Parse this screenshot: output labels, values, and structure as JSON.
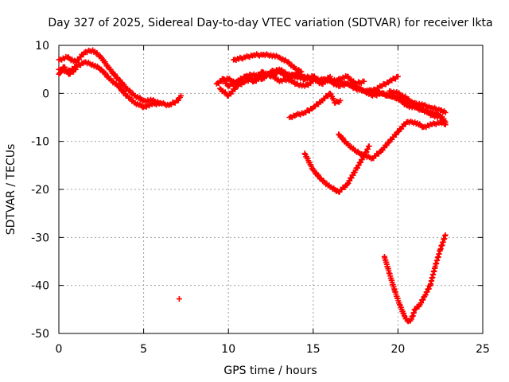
{
  "chart_data": {
    "type": "scatter",
    "title": "Day 327 of 2025, Sidereal Day-to-day VTEC variation (SDTVAR) for receiver lkta",
    "xlabel": "GPS time / hours",
    "ylabel": "SDTVAR / TECUs",
    "xlim": [
      0,
      25
    ],
    "ylim": [
      -50,
      10
    ],
    "x_ticks": [
      0,
      5,
      10,
      15,
      20,
      25
    ],
    "y_ticks": [
      10,
      0,
      -10,
      -20,
      -30,
      -40,
      -50
    ],
    "grid": true,
    "marker": "plus",
    "series_color": "#ff0000",
    "series": [
      {
        "name": "s1",
        "x": [
          0.0,
          0.5,
          1.0,
          1.5,
          2.0,
          2.5,
          3.0,
          3.5,
          4.0,
          4.5,
          5.0,
          5.5,
          6.0,
          6.5,
          7.0,
          7.2
        ],
        "y": [
          5.0,
          4.5,
          5.5,
          6.5,
          6.0,
          5.0,
          3.0,
          1.5,
          -0.5,
          -2.0,
          -2.8,
          -2.3,
          -2.0,
          -2.5,
          -1.5,
          -0.5
        ]
      },
      {
        "name": "s2",
        "x": [
          0.0,
          0.5,
          1.0,
          1.5,
          2.0,
          2.5,
          3.0,
          3.5,
          4.0,
          4.5,
          5.0,
          5.5,
          6.0
        ],
        "y": [
          7.0,
          7.5,
          6.5,
          8.5,
          9.0,
          7.5,
          5.0,
          3.0,
          1.0,
          -0.5,
          -1.5,
          -1.5,
          -2.0
        ]
      },
      {
        "name": "s3",
        "x": [
          0.0,
          0.3,
          0.6,
          1.0
        ],
        "y": [
          4.0,
          5.5,
          4.0,
          5.0
        ]
      },
      {
        "name": "s4",
        "x": [
          7.1
        ],
        "y": [
          -42.8
        ]
      },
      {
        "name": "s5",
        "x": [
          9.3,
          9.7,
          10.0,
          10.5,
          11.0,
          11.5,
          12.0,
          12.5,
          13.0,
          13.5,
          14.0,
          14.5,
          15.0
        ],
        "y": [
          2.0,
          3.0,
          1.5,
          2.5,
          3.5,
          2.5,
          3.5,
          4.0,
          2.5,
          3.0,
          2.0,
          1.5,
          2.5
        ]
      },
      {
        "name": "s6",
        "x": [
          9.5,
          10.0,
          10.5,
          11.0,
          11.5,
          12.0,
          12.5,
          13.0,
          13.5,
          14.0,
          14.5,
          15.0,
          15.5,
          16.0
        ],
        "y": [
          1.0,
          -0.5,
          1.5,
          2.5,
          3.0,
          4.5,
          3.5,
          4.5,
          3.5,
          4.0,
          3.0,
          3.5,
          2.5,
          3.5
        ]
      },
      {
        "name": "s7",
        "x": [
          9.5,
          10.0,
          10.5,
          11.0,
          11.5,
          12.0,
          12.5,
          13.0,
          13.5,
          14.0,
          14.5
        ],
        "y": [
          2.5,
          3.0,
          2.0,
          3.5,
          4.0,
          3.0,
          4.5,
          5.0,
          4.0,
          3.5,
          3.0
        ]
      },
      {
        "name": "s8",
        "x": [
          10.3,
          11.0,
          11.5,
          12.0,
          12.5,
          13.0,
          13.5,
          14.0,
          14.3
        ],
        "y": [
          7.0,
          7.5,
          8.0,
          8.0,
          8.0,
          7.5,
          6.5,
          5.0,
          4.5
        ]
      },
      {
        "name": "s9",
        "x": [
          13.5,
          14.0,
          14.5,
          15.0,
          15.5,
          16.0,
          16.5,
          17.0,
          17.5,
          18.0,
          18.5,
          19.0,
          19.5,
          20.0,
          20.5,
          21.0,
          21.5,
          22.0,
          22.5,
          22.8
        ],
        "y": [
          3.0,
          4.0,
          3.5,
          3.0,
          2.0,
          3.0,
          2.5,
          2.0,
          1.5,
          0.5,
          0.5,
          0.0,
          -0.5,
          -1.0,
          -2.0,
          -2.0,
          -2.5,
          -3.0,
          -3.5,
          -4.0
        ]
      },
      {
        "name": "s10",
        "x": [
          15.5,
          16.0,
          16.5,
          17.0,
          17.5,
          18.0,
          18.5,
          19.0,
          19.5,
          20.0,
          20.5,
          21.0,
          21.5,
          22.0,
          22.5,
          22.8
        ],
        "y": [
          3.0,
          2.5,
          1.5,
          2.0,
          1.0,
          0.5,
          -0.5,
          0.0,
          -0.5,
          -1.0,
          -2.5,
          -3.0,
          -3.5,
          -4.0,
          -4.5,
          -6.0
        ]
      },
      {
        "name": "s11",
        "x": [
          16.5,
          17.0,
          17.5,
          18.0
        ],
        "y": [
          3.0,
          3.5,
          2.0,
          2.5
        ]
      },
      {
        "name": "s12",
        "x": [
          18.0,
          18.5,
          19.0,
          19.5,
          20.0
        ],
        "y": [
          0.5,
          0.5,
          1.5,
          2.5,
          3.5
        ]
      },
      {
        "name": "s13",
        "x": [
          19.5,
          20.0,
          20.5,
          21.0,
          21.5,
          22.0,
          22.5,
          22.8
        ],
        "y": [
          0.5,
          0.0,
          -1.0,
          -2.5,
          -3.5,
          -4.5,
          -5.0,
          -6.5
        ]
      },
      {
        "name": "s14",
        "x": [
          13.6,
          14.0,
          14.5,
          15.0,
          15.5,
          16.0,
          16.3,
          16.6
        ],
        "y": [
          -5.0,
          -4.5,
          -4.0,
          -3.0,
          -1.5,
          0.0,
          -2.0,
          -1.5
        ]
      },
      {
        "name": "s15",
        "x": [
          16.5,
          17.0,
          17.5,
          18.0,
          18.5,
          19.0,
          19.5,
          20.0,
          20.5,
          21.0,
          21.5,
          22.0,
          22.5,
          22.8
        ],
        "y": [
          -8.5,
          -10.5,
          -12.0,
          -13.0,
          -13.5,
          -12.0,
          -10.0,
          -8.0,
          -6.0,
          -6.0,
          -7.0,
          -6.5,
          -6.0,
          -6.5
        ]
      },
      {
        "name": "s16",
        "x": [
          14.5,
          15.0,
          15.5,
          16.0,
          16.5,
          17.0,
          17.5,
          18.0,
          18.3
        ],
        "y": [
          -12.5,
          -16.0,
          -18.0,
          -19.5,
          -20.5,
          -19.0,
          -16.0,
          -13.0,
          -11.0
        ]
      },
      {
        "name": "s17",
        "x": [
          19.2,
          19.5,
          19.8,
          20.1,
          20.4,
          20.6,
          20.8,
          21.0,
          21.3,
          21.6,
          21.9,
          22.2,
          22.5,
          22.8
        ],
        "y": [
          -34.0,
          -37.5,
          -41.0,
          -44.0,
          -46.5,
          -47.5,
          -47.0,
          -45.0,
          -44.0,
          -42.0,
          -40.0,
          -36.0,
          -32.5,
          -29.5
        ]
      }
    ]
  }
}
